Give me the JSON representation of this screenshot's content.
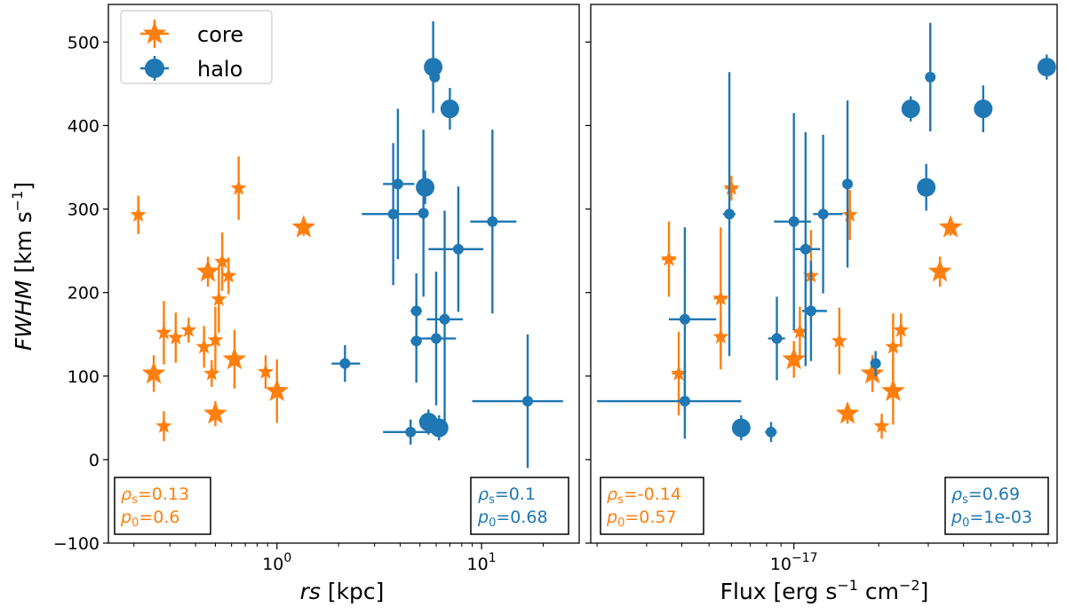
{
  "colors": {
    "core": "#ff7f0e",
    "halo": "#1f77b4"
  },
  "legend": {
    "core_label": "core",
    "halo_label": "halo"
  },
  "chart_data": [
    {
      "type": "scatter",
      "xlabel_italic": "rs",
      "xlabel_unit": " [kpc]",
      "ylabel_italic": "FWHM",
      "ylabel_unit": " [km s",
      "ylabel_exp": "−1",
      "ylabel_close": "]",
      "xscale": "log",
      "xlim": [
        0.15,
        30
      ],
      "ylim": [
        -100,
        545
      ],
      "yticks": [
        -100,
        0,
        100,
        200,
        300,
        400,
        500
      ],
      "ytick_labels": [
        "−100",
        "0",
        "100",
        "200",
        "300",
        "400",
        "500"
      ],
      "xticks": [
        {
          "base": "10",
          "exp": "0",
          "value": 1
        },
        {
          "base": "10",
          "exp": "1",
          "value": 10
        }
      ],
      "stats": {
        "core": {
          "rho_sym": "ρ",
          "rho_sub": "s",
          "rho_val": "=0.13",
          "p_sym": "p",
          "p_sub": "0",
          "p_val": "=0.6"
        },
        "halo": {
          "rho_sym": "ρ",
          "rho_sub": "s",
          "rho_val": "=0.1",
          "p_sym": "p",
          "p_sub": "0",
          "p_val": "=0.68"
        }
      },
      "series": [
        {
          "name": "core",
          "points": [
            {
              "x": 0.21,
              "y": 293,
              "xerr": [
                0.01,
                0.01
              ],
              "yerr": 23,
              "size": "small"
            },
            {
              "x": 0.25,
              "y": 103,
              "xerr": [
                0.01,
                0.01
              ],
              "yerr": 22,
              "size": "large"
            },
            {
              "x": 0.28,
              "y": 152,
              "xerr": [
                0.01,
                0.01
              ],
              "yerr": 38,
              "size": "small"
            },
            {
              "x": 0.28,
              "y": 40,
              "xerr": [
                0.01,
                0.01
              ],
              "yerr": 18,
              "size": "small"
            },
            {
              "x": 0.32,
              "y": 146,
              "xerr": [
                0.01,
                0.01
              ],
              "yerr": 30,
              "size": "small"
            },
            {
              "x": 0.37,
              "y": 155,
              "xerr": [
                0.01,
                0.01
              ],
              "yerr": 15,
              "size": "small"
            },
            {
              "x": 0.44,
              "y": 135,
              "xerr": [
                0.02,
                0.02
              ],
              "yerr": 25,
              "size": "small"
            },
            {
              "x": 0.46,
              "y": 225,
              "xerr": [
                0.02,
                0.02
              ],
              "yerr": 18,
              "size": "large"
            },
            {
              "x": 0.48,
              "y": 103,
              "xerr": [
                0.01,
                0.01
              ],
              "yerr": 16,
              "size": "small"
            },
            {
              "x": 0.5,
              "y": 143,
              "xerr": [
                0.01,
                0.01
              ],
              "yerr": 40,
              "size": "small"
            },
            {
              "x": 0.5,
              "y": 55,
              "xerr": [
                0.02,
                0.02
              ],
              "yerr": 15,
              "size": "large"
            },
            {
              "x": 0.52,
              "y": 192,
              "xerr": [
                0.02,
                0.02
              ],
              "yerr": 40,
              "size": "small"
            },
            {
              "x": 0.54,
              "y": 237,
              "xerr": [
                0.03,
                0.03
              ],
              "yerr": 35,
              "size": "small"
            },
            {
              "x": 0.58,
              "y": 220,
              "xerr": [
                0.02,
                0.02
              ],
              "yerr": 22,
              "size": "small"
            },
            {
              "x": 0.62,
              "y": 120,
              "xerr": [
                0.02,
                0.02
              ],
              "yerr": 35,
              "size": "large"
            },
            {
              "x": 0.65,
              "y": 325,
              "xerr": [
                0.02,
                0.02
              ],
              "yerr": 38,
              "size": "small"
            },
            {
              "x": 0.88,
              "y": 105,
              "xerr": [
                0.03,
                0.03
              ],
              "yerr": 20,
              "size": "small"
            },
            {
              "x": 1.0,
              "y": 82,
              "xerr": [
                0.03,
                0.03
              ],
              "yerr": 38,
              "size": "large"
            },
            {
              "x": 1.35,
              "y": 278,
              "xerr": [
                0.04,
                0.04
              ],
              "yerr": 10,
              "size": "large"
            }
          ]
        },
        {
          "name": "halo",
          "points": [
            {
              "x": 2.15,
              "y": 115,
              "xerr": [
                0.3,
                0.4
              ],
              "yerr": 22,
              "size": "small"
            },
            {
              "x": 3.7,
              "y": 294,
              "xerr": [
                1.1,
                1.4
              ],
              "yerr": 85,
              "size": "small"
            },
            {
              "x": 3.9,
              "y": 330,
              "xerr": [
                0.6,
                0.8
              ],
              "yerr": 90,
              "size": "small"
            },
            {
              "x": 4.5,
              "y": 33,
              "xerr": [
                1.2,
                1.5
              ],
              "yerr": 15,
              "size": "small"
            },
            {
              "x": 4.8,
              "y": 142,
              "xerr": [
                0.3,
                0.3
              ],
              "yerr": 50,
              "size": "small"
            },
            {
              "x": 4.8,
              "y": 178,
              "xerr": [
                0.3,
                0.3
              ],
              "yerr": 45,
              "size": "small"
            },
            {
              "x": 5.2,
              "y": 295,
              "xerr": [
                0.2,
                0.2
              ],
              "yerr": 100,
              "size": "small"
            },
            {
              "x": 5.3,
              "y": 326,
              "xerr": [
                0.2,
                0.2
              ],
              "yerr": 20,
              "size": "large"
            },
            {
              "x": 5.5,
              "y": 45,
              "xerr": [
                0.2,
                0.2
              ],
              "yerr": 15,
              "size": "large"
            },
            {
              "x": 5.8,
              "y": 470,
              "xerr": [
                0.2,
                0.2
              ],
              "yerr": 55,
              "size": "large"
            },
            {
              "x": 5.9,
              "y": 458,
              "xerr": [
                0.2,
                0.2
              ],
              "yerr": 5,
              "size": "small"
            },
            {
              "x": 6.0,
              "y": 145,
              "xerr": [
                1.4,
                1.5
              ],
              "yerr": 80,
              "size": "small"
            },
            {
              "x": 6.2,
              "y": 38,
              "xerr": [
                0.2,
                0.2
              ],
              "yerr": 15,
              "size": "large"
            },
            {
              "x": 6.6,
              "y": 168,
              "xerr": [
                1.2,
                1.5
              ],
              "yerr": 130,
              "size": "small"
            },
            {
              "x": 7.0,
              "y": 420,
              "xerr": [
                0.2,
                0.2
              ],
              "yerr": 25,
              "size": "large"
            },
            {
              "x": 7.7,
              "y": 252,
              "xerr": [
                2.2,
                2.5
              ],
              "yerr": 75,
              "size": "small"
            },
            {
              "x": 11.3,
              "y": 285,
              "xerr": [
                2.5,
                3.5
              ],
              "yerr": 110,
              "size": "small"
            },
            {
              "x": 16.8,
              "y": 70,
              "xerr": [
                7.8,
                8.2
              ],
              "yerr": 80,
              "size": "small"
            }
          ]
        }
      ]
    },
    {
      "type": "scatter",
      "xlabel": "Flux [erg s",
      "xlabel_exp1": "−1",
      "xlabel_mid": " cm",
      "xlabel_exp2": "−2",
      "xlabel_close": "]",
      "xscale": "log",
      "xlim": [
        1.9e-18,
        8.6e-17
      ],
      "ylim": [
        -100,
        545
      ],
      "xticks": [
        {
          "base": "10",
          "exp": "−17",
          "value": 1e-17
        }
      ],
      "stats": {
        "core": {
          "rho_sym": "ρ",
          "rho_sub": "s",
          "rho_val": "=-0.14",
          "p_sym": "p",
          "p_sub": "0",
          "p_val": "=0.57"
        },
        "halo": {
          "rho_sym": "ρ",
          "rho_sub": "s",
          "rho_val": "=0.69",
          "p_sym": "p",
          "p_sub": "0",
          "p_val": "=1e-03"
        }
      },
      "series": [
        {
          "name": "core",
          "points": [
            {
              "x": 3.6e-18,
              "y": 240,
              "xerr": [
                2e-19,
                2e-19
              ],
              "yerr": 45,
              "size": "small"
            },
            {
              "x": 3.9e-18,
              "y": 103,
              "xerr": [
                2e-19,
                2e-19
              ],
              "yerr": 50,
              "size": "small"
            },
            {
              "x": 5.5e-18,
              "y": 193,
              "xerr": [
                3e-19,
                3e-19
              ],
              "yerr": 85,
              "size": "small"
            },
            {
              "x": 5.5e-18,
              "y": 147,
              "xerr": [
                2e-19,
                2e-19
              ],
              "yerr": 25,
              "size": "small"
            },
            {
              "x": 6e-18,
              "y": 325,
              "xerr": [
                3e-19,
                3e-19
              ],
              "yerr": 15,
              "size": "small"
            },
            {
              "x": 1e-17,
              "y": 120,
              "xerr": [
                4e-19,
                4e-19
              ],
              "yerr": 22,
              "size": "large"
            },
            {
              "x": 1.05e-17,
              "y": 153,
              "xerr": [
                5e-19,
                5e-19
              ],
              "yerr": 30,
              "size": "small"
            },
            {
              "x": 1.15e-17,
              "y": 220,
              "xerr": [
                4e-19,
                4e-19
              ],
              "yerr": 55,
              "size": "small"
            },
            {
              "x": 1.45e-17,
              "y": 142,
              "xerr": [
                5e-19,
                5e-19
              ],
              "yerr": 40,
              "size": "small"
            },
            {
              "x": 1.55e-17,
              "y": 55,
              "xerr": [
                5e-19,
                5e-19
              ],
              "yerr": 12,
              "size": "large"
            },
            {
              "x": 1.58e-17,
              "y": 293,
              "xerr": [
                5e-19,
                5e-19
              ],
              "yerr": 30,
              "size": "small"
            },
            {
              "x": 1.9e-17,
              "y": 103,
              "xerr": [
                6e-19,
                6e-19
              ],
              "yerr": 22,
              "size": "large"
            },
            {
              "x": 2.05e-17,
              "y": 40,
              "xerr": [
                6e-19,
                6e-19
              ],
              "yerr": 15,
              "size": "small"
            },
            {
              "x": 2.25e-17,
              "y": 135,
              "xerr": [
                7e-19,
                7e-19
              ],
              "yerr": 40,
              "size": "small"
            },
            {
              "x": 2.25e-17,
              "y": 82,
              "xerr": [
                7e-19,
                7e-19
              ],
              "yerr": 40,
              "size": "large"
            },
            {
              "x": 2.4e-17,
              "y": 155,
              "xerr": [
                7e-19,
                7e-19
              ],
              "yerr": 20,
              "size": "small"
            },
            {
              "x": 3.3e-17,
              "y": 225,
              "xerr": [
                9e-19,
                9e-19
              ],
              "yerr": 18,
              "size": "large"
            },
            {
              "x": 3.6e-17,
              "y": 278,
              "xerr": [
                9e-19,
                9e-19
              ],
              "yerr": 10,
              "size": "large"
            }
          ]
        },
        {
          "name": "halo",
          "points": [
            {
              "x": 4.1e-18,
              "y": 168,
              "xerr": [
                5e-19,
                1.2e-18
              ],
              "yerr": 110,
              "size": "small"
            },
            {
              "x": 4.1e-18,
              "y": 70,
              "xerr": [
                2.1e-18,
                2.4e-18
              ],
              "yerr": 45,
              "size": "small"
            },
            {
              "x": 5.9e-18,
              "y": 294,
              "xerr": [
                3e-19,
                3e-19
              ],
              "yerr": 170,
              "size": "small"
            },
            {
              "x": 6.5e-18,
              "y": 38,
              "xerr": [
                3e-19,
                3e-19
              ],
              "yerr": 15,
              "size": "large"
            },
            {
              "x": 8.3e-18,
              "y": 33,
              "xerr": [
                4e-19,
                4e-19
              ],
              "yerr": 12,
              "size": "small"
            },
            {
              "x": 8.7e-18,
              "y": 145,
              "xerr": [
                6e-19,
                6e-19
              ],
              "yerr": 50,
              "size": "small"
            },
            {
              "x": 1e-17,
              "y": 285,
              "xerr": [
                1.5e-18,
                1.5e-18
              ],
              "yerr": 130,
              "size": "small"
            },
            {
              "x": 1.1e-17,
              "y": 252,
              "xerr": [
                9e-19,
                1.4e-18
              ],
              "yerr": 140,
              "size": "small"
            },
            {
              "x": 1.15e-17,
              "y": 178,
              "xerr": [
                8e-19,
                1.6e-18
              ],
              "yerr": 60,
              "size": "small"
            },
            {
              "x": 1.27e-17,
              "y": 294,
              "xerr": [
                1e-18,
                2.2e-18
              ],
              "yerr": 95,
              "size": "small"
            },
            {
              "x": 1.55e-17,
              "y": 330,
              "xerr": [
                6e-19,
                6e-19
              ],
              "yerr": 100,
              "size": "small"
            },
            {
              "x": 1.95e-17,
              "y": 115,
              "xerr": [
                7e-19,
                7e-19
              ],
              "yerr": 15,
              "size": "small"
            },
            {
              "x": 2.6e-17,
              "y": 420,
              "xerr": [
                7e-19,
                7e-19
              ],
              "yerr": 15,
              "size": "large"
            },
            {
              "x": 2.95e-17,
              "y": 326,
              "xerr": [
                6e-19,
                6e-19
              ],
              "yerr": 28,
              "size": "large"
            },
            {
              "x": 3.05e-17,
              "y": 458,
              "xerr": [
                7e-19,
                7e-19
              ],
              "yerr": 65,
              "size": "small"
            },
            {
              "x": 4.7e-17,
              "y": 420,
              "xerr": [
                8e-19,
                8e-19
              ],
              "yerr": 28,
              "size": "large"
            },
            {
              "x": 7.9e-17,
              "y": 470,
              "xerr": [
                1e-18,
                1e-18
              ],
              "yerr": 15,
              "size": "large"
            }
          ]
        }
      ]
    }
  ]
}
